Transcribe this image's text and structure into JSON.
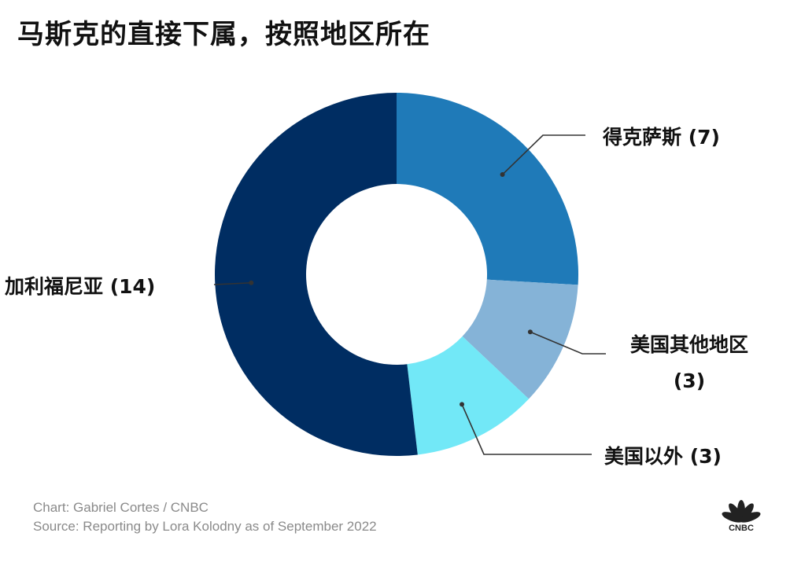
{
  "title": "马斯克的直接下属，按照地区所在",
  "chart_data": {
    "type": "pie",
    "donut": true,
    "categories": [
      "得克萨斯",
      "美国其他地区",
      "美国以外",
      "加利福尼亚"
    ],
    "values": [
      7,
      3,
      3,
      14
    ],
    "colors": [
      "#1f7ab8",
      "#85b3d7",
      "#72e8f7",
      "#002d62"
    ],
    "labels": [
      {
        "text": "得克萨斯 (7)",
        "lines": [
          "得克萨斯 (7)"
        ]
      },
      {
        "text": "美国其他地区 (3)",
        "lines": [
          "美国其他地区",
          "(3)"
        ]
      },
      {
        "text": "美国以外 (3)",
        "lines": [
          "美国以外 (3)"
        ]
      },
      {
        "text": "加利福尼亚 (14)",
        "lines": [
          "加利福尼亚 (14)"
        ]
      }
    ]
  },
  "credits": {
    "chart": "Chart: Gabriel Cortes / CNBC",
    "source": "Source: Reporting by Lora Kolodny as of September 2022"
  },
  "logo": {
    "text": "CNBC",
    "icon": "cnbc-peacock-icon"
  }
}
